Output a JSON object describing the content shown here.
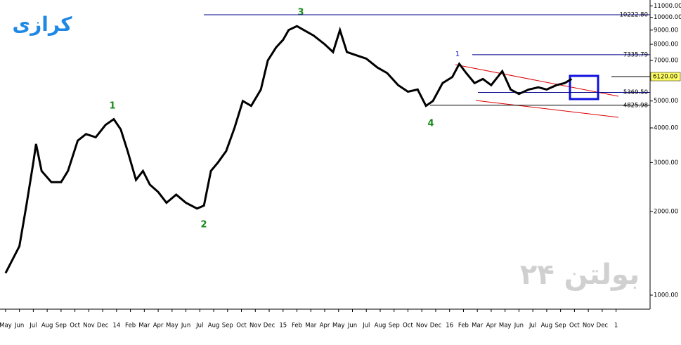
{
  "title": "کرازی",
  "watermark": "بولتن ۲۴",
  "chart_data": {
    "type": "line",
    "log_scale": true,
    "color": "#000000",
    "xlim": [
      -0.4,
      46.45
    ],
    "ylim": [
      890,
      11550
    ],
    "xticks": [
      {
        "value": 0,
        "label": "May"
      },
      {
        "value": 1,
        "label": "Jun"
      },
      {
        "value": 2,
        "label": "Jul"
      },
      {
        "value": 3,
        "label": "Aug"
      },
      {
        "value": 4,
        "label": "Sep"
      },
      {
        "value": 5,
        "label": "Oct"
      },
      {
        "value": 6,
        "label": "Nov"
      },
      {
        "value": 7,
        "label": "Dec"
      },
      {
        "value": 8,
        "label": "14"
      },
      {
        "value": 9,
        "label": "Feb"
      },
      {
        "value": 10,
        "label": "Mar"
      },
      {
        "value": 11,
        "label": "Apr"
      },
      {
        "value": 12,
        "label": "May"
      },
      {
        "value": 13,
        "label": "Jun"
      },
      {
        "value": 14,
        "label": "Jul"
      },
      {
        "value": 15,
        "label": "Aug"
      },
      {
        "value": 16,
        "label": "Sep"
      },
      {
        "value": 17,
        "label": "Oct"
      },
      {
        "value": 18,
        "label": "Nov"
      },
      {
        "value": 19,
        "label": "Dec"
      },
      {
        "value": 20,
        "label": "15"
      },
      {
        "value": 21,
        "label": "Feb"
      },
      {
        "value": 22,
        "label": "Mar"
      },
      {
        "value": 23,
        "label": "Apr"
      },
      {
        "value": 24,
        "label": "May"
      },
      {
        "value": 25,
        "label": "Jun"
      },
      {
        "value": 26,
        "label": "Jul"
      },
      {
        "value": 27,
        "label": "Aug"
      },
      {
        "value": 28,
        "label": "Sep"
      },
      {
        "value": 29,
        "label": "Oct"
      },
      {
        "value": 30,
        "label": "Nov"
      },
      {
        "value": 31,
        "label": "Dec"
      },
      {
        "value": 32,
        "label": "16"
      },
      {
        "value": 33,
        "label": "Feb"
      },
      {
        "value": 34,
        "label": "Mar"
      },
      {
        "value": 35,
        "label": "Apr"
      },
      {
        "value": 36,
        "label": "May"
      },
      {
        "value": 37,
        "label": "Jun"
      },
      {
        "value": 38,
        "label": "Jul"
      },
      {
        "value": 39,
        "label": "Aug"
      },
      {
        "value": 40,
        "label": "Sep"
      },
      {
        "value": 41,
        "label": "Oct"
      },
      {
        "value": 42,
        "label": "Nov"
      },
      {
        "value": 43,
        "label": "Dec"
      },
      {
        "value": 44,
        "label": "1"
      }
    ],
    "yticks": [
      {
        "value": 1000,
        "label": "1000.00"
      },
      {
        "value": 2000,
        "label": "2000.00"
      },
      {
        "value": 3000,
        "label": "3000.00"
      },
      {
        "value": 4000,
        "label": "4000.00"
      },
      {
        "value": 5000,
        "label": "5000.00"
      },
      {
        "value": 6000,
        "label": "6000.00"
      },
      {
        "value": 7000,
        "label": "7000.00"
      },
      {
        "value": 8000,
        "label": "8000.00"
      },
      {
        "value": 9000,
        "label": "9000.00"
      },
      {
        "value": 10000,
        "label": "10000.00"
      },
      {
        "value": 11000,
        "label": "11000.00"
      }
    ],
    "series": [
      {
        "name": "Close",
        "color": "#000000",
        "x": [
          0,
          1,
          1.5,
          2,
          2.2,
          2.6,
          3.3,
          4,
          4.5,
          5.2,
          5.8,
          6.5,
          7.2,
          7.8,
          8.3,
          8.8,
          9.4,
          9.9,
          10.4,
          11,
          11.6,
          12.3,
          13,
          13.8,
          14.3,
          14.8,
          15.3,
          15.9,
          16.5,
          17.1,
          17.7,
          18.4,
          18.9,
          19.5,
          20,
          20.4,
          21,
          21.5,
          22.2,
          23,
          23.6,
          24.1,
          24.6,
          25.3,
          26,
          26.8,
          27.5,
          28.3,
          29,
          29.7,
          30.3,
          30.8,
          31.5,
          32.2,
          32.7,
          33.2,
          33.8,
          34.4,
          35,
          35.8,
          36.4,
          37,
          37.7,
          38.4,
          39,
          39.7,
          40.3,
          40.8
        ],
        "values": [
          1200,
          1500,
          2100,
          3000,
          3500,
          2800,
          2550,
          2550,
          2800,
          3600,
          3800,
          3700,
          4100,
          4300,
          3950,
          3300,
          2600,
          2800,
          2500,
          2350,
          2150,
          2300,
          2150,
          2050,
          2100,
          2800,
          3000,
          3300,
          4000,
          5000,
          4800,
          5500,
          7000,
          7800,
          8300,
          9000,
          9300,
          9000,
          8600,
          8000,
          7500,
          9000,
          7500,
          7300,
          7100,
          6600,
          6300,
          5700,
          5400,
          5500,
          4800,
          5000,
          5800,
          6100,
          6800,
          6300,
          5800,
          6000,
          5700,
          6400,
          5500,
          5300,
          5500,
          5600,
          5500,
          5700,
          5800,
          6000
        ]
      }
    ],
    "levels": [
      {
        "value": 10222.8,
        "label": "10222.80",
        "color": "#00008b"
      },
      {
        "value": 7335.79,
        "label": "7335.79",
        "color": "#00008b"
      },
      {
        "value": 6120,
        "label": "6120.00",
        "color": "#000000"
      },
      {
        "value": 5369.5,
        "label": "5369.50",
        "color": "#00008b"
      },
      {
        "value": 4825.98,
        "label": "4825.98",
        "color": "#000000"
      }
    ],
    "annotations": [
      "1",
      "2",
      "3",
      "4",
      "1"
    ]
  }
}
